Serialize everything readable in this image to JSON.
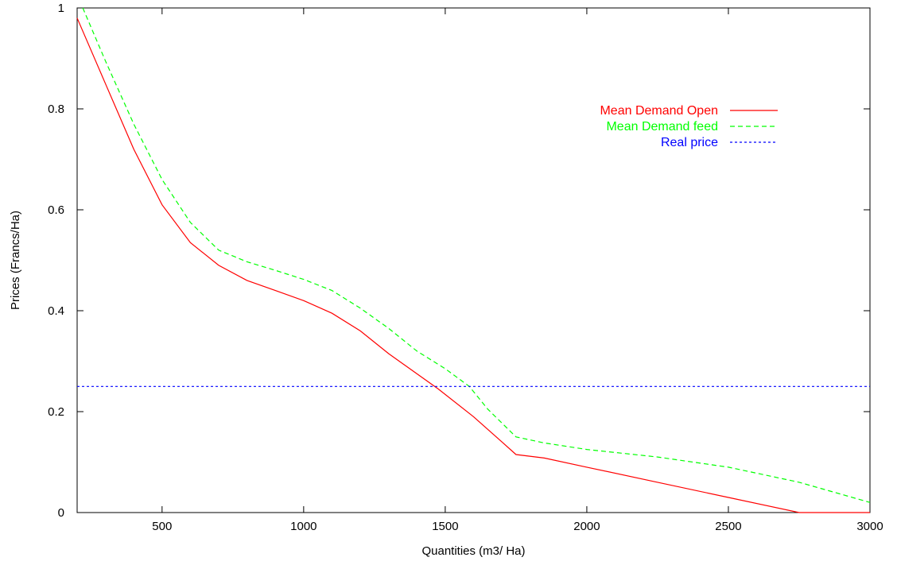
{
  "chart_data": {
    "type": "line",
    "xlabel": "Quantities  (m3/ Ha)",
    "ylabel": "Prices  (Francs/Ha)",
    "xlim": [
      200,
      3000
    ],
    "ylim": [
      0,
      1
    ],
    "xticks": [
      500,
      1000,
      1500,
      2000,
      2500,
      3000
    ],
    "yticks": [
      0,
      0.2,
      0.4,
      0.6,
      0.8,
      1
    ],
    "xtick_labels": [
      "500",
      "1000",
      "1500",
      "2000",
      "2500",
      "3000"
    ],
    "ytick_labels": [
      "0",
      "0.2",
      "0.4",
      "0.6",
      "0.8",
      "1"
    ],
    "grid": false,
    "legend_position": "top-right",
    "series": [
      {
        "name": "Mean Demand Open",
        "color": "#ff0000",
        "dash": "solid",
        "points": [
          [
            200,
            0.98
          ],
          [
            300,
            0.85
          ],
          [
            400,
            0.72
          ],
          [
            500,
            0.61
          ],
          [
            600,
            0.535
          ],
          [
            700,
            0.49
          ],
          [
            800,
            0.46
          ],
          [
            900,
            0.44
          ],
          [
            1000,
            0.42
          ],
          [
            1100,
            0.395
          ],
          [
            1200,
            0.36
          ],
          [
            1300,
            0.315
          ],
          [
            1400,
            0.275
          ],
          [
            1475,
            0.245
          ],
          [
            1600,
            0.19
          ],
          [
            1700,
            0.14
          ],
          [
            1750,
            0.115
          ],
          [
            1850,
            0.108
          ],
          [
            2000,
            0.09
          ],
          [
            2250,
            0.06
          ],
          [
            2500,
            0.03
          ],
          [
            2750,
            0.0
          ],
          [
            3000,
            0.0
          ]
        ]
      },
      {
        "name": "Mean Demand feed",
        "color": "#00ff00",
        "dash": "dashed",
        "points": [
          [
            220,
            1.0
          ],
          [
            300,
            0.895
          ],
          [
            400,
            0.77
          ],
          [
            500,
            0.66
          ],
          [
            600,
            0.575
          ],
          [
            700,
            0.52
          ],
          [
            800,
            0.497
          ],
          [
            900,
            0.48
          ],
          [
            1000,
            0.462
          ],
          [
            1100,
            0.44
          ],
          [
            1200,
            0.405
          ],
          [
            1300,
            0.365
          ],
          [
            1400,
            0.32
          ],
          [
            1500,
            0.285
          ],
          [
            1585,
            0.25
          ],
          [
            1650,
            0.205
          ],
          [
            1750,
            0.15
          ],
          [
            1850,
            0.138
          ],
          [
            2000,
            0.125
          ],
          [
            2250,
            0.11
          ],
          [
            2500,
            0.09
          ],
          [
            2750,
            0.06
          ],
          [
            3000,
            0.02
          ]
        ]
      },
      {
        "name": "Real price",
        "color": "#0000ff",
        "dash": "dotted",
        "points": [
          [
            200,
            0.25
          ],
          [
            3000,
            0.25
          ]
        ]
      }
    ]
  }
}
